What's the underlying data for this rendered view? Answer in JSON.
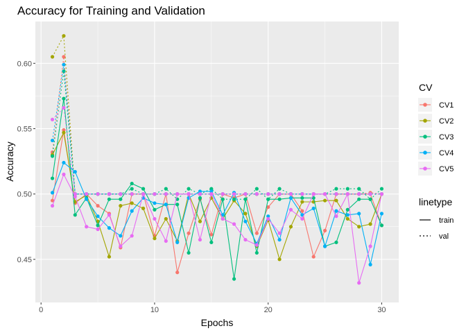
{
  "chart_data": {
    "type": "line",
    "title": "Accuracy for Training and Validation",
    "xlabel": "Epochs",
    "ylabel": "Accuracy",
    "xlim": [
      -0.5,
      31.5
    ],
    "ylim": [
      0.417,
      0.632
    ],
    "x_ticks": [
      0,
      10,
      20,
      30
    ],
    "y_ticks": [
      0.45,
      0.5,
      0.55,
      0.6
    ],
    "x_tick_labels": [
      "0",
      "10",
      "20",
      "30"
    ],
    "y_tick_labels": [
      "0.45",
      "0.50",
      "0.55",
      "0.60"
    ],
    "grid": true,
    "legend_position": "right",
    "x": [
      1,
      2,
      3,
      4,
      5,
      6,
      7,
      8,
      9,
      10,
      11,
      12,
      13,
      14,
      15,
      16,
      17,
      18,
      19,
      20,
      21,
      22,
      23,
      24,
      25,
      26,
      27,
      28,
      29,
      30
    ],
    "cv_legend_title": "CV",
    "linetype_legend_title": "linetype",
    "linetypes": [
      {
        "name": "train",
        "dash": ""
      },
      {
        "name": "val",
        "dash": "2,3"
      }
    ],
    "series": [
      {
        "name": "CV1",
        "color": "#F8766D",
        "train": [
          0.495,
          0.549,
          0.493,
          0.5,
          0.491,
          0.485,
          0.459,
          0.5,
          0.5,
          0.468,
          0.5,
          0.44,
          0.47,
          0.496,
          0.469,
          0.5,
          0.497,
          0.5,
          0.47,
          0.49,
          0.5,
          0.5,
          0.487,
          0.452,
          0.472,
          0.5,
          0.5,
          0.5,
          0.5,
          0.476
        ],
        "val": [
          0.532,
          0.605,
          0.5,
          0.5,
          0.5,
          0.5,
          0.5,
          0.5,
          0.5,
          0.5,
          0.5,
          0.5,
          0.5,
          0.5,
          0.5,
          0.5,
          0.5,
          0.5,
          0.5,
          0.5,
          0.5,
          0.5,
          0.5,
          0.5,
          0.5,
          0.5,
          0.5,
          0.5,
          0.501,
          0.5
        ]
      },
      {
        "name": "CV2",
        "color": "#A3A500",
        "train": [
          0.53,
          0.547,
          0.494,
          0.499,
          0.479,
          0.452,
          0.491,
          0.493,
          0.489,
          0.466,
          0.481,
          0.464,
          0.5,
          0.479,
          0.497,
          0.481,
          0.495,
          0.485,
          0.46,
          0.48,
          0.45,
          0.475,
          0.494,
          0.494,
          0.495,
          0.495,
          0.481,
          0.475,
          0.477,
          0.5
        ],
        "val": [
          0.605,
          0.621,
          0.5,
          0.5,
          0.5,
          0.5,
          0.5,
          0.5,
          0.5,
          0.5,
          0.5,
          0.5,
          0.5,
          0.5,
          0.5,
          0.5,
          0.5,
          0.5,
          0.5,
          0.5,
          0.5,
          0.5,
          0.5,
          0.5,
          0.5,
          0.5,
          0.5,
          0.5,
          0.5,
          0.5
        ]
      },
      {
        "name": "CV3",
        "color": "#00BF7D",
        "train": [
          0.512,
          0.573,
          0.484,
          0.497,
          0.476,
          0.496,
          0.496,
          0.508,
          0.504,
          0.488,
          0.492,
          0.492,
          0.455,
          0.497,
          0.463,
          0.496,
          0.435,
          0.496,
          0.455,
          0.496,
          0.496,
          0.497,
          0.497,
          0.497,
          0.46,
          0.463,
          0.488,
          0.496,
          0.496,
          0.476
        ],
        "val": [
          0.529,
          0.594,
          0.5,
          0.5,
          0.5,
          0.5,
          0.5,
          0.504,
          0.5,
          0.5,
          0.504,
          0.496,
          0.504,
          0.5,
          0.504,
          0.496,
          0.496,
          0.496,
          0.504,
          0.496,
          0.504,
          0.5,
          0.5,
          0.5,
          0.5,
          0.504,
          0.504,
          0.504,
          0.496,
          0.504
        ]
      },
      {
        "name": "CV4",
        "color": "#00B0F6",
        "train": [
          0.501,
          0.524,
          0.517,
          0.496,
          0.483,
          0.474,
          0.468,
          0.487,
          0.497,
          0.493,
          0.492,
          0.463,
          0.497,
          0.502,
          0.502,
          0.484,
          0.501,
          0.479,
          0.462,
          0.483,
          0.465,
          0.497,
          0.484,
          0.489,
          0.46,
          0.487,
          0.484,
          0.485,
          0.446,
          0.485
        ],
        "val": [
          0.541,
          0.599,
          0.5,
          0.5,
          0.5,
          0.5,
          0.5,
          0.5,
          0.5,
          0.5,
          0.5,
          0.5,
          0.5,
          0.5,
          0.5,
          0.5,
          0.5,
          0.5,
          0.5,
          0.5,
          0.5,
          0.5,
          0.5,
          0.5,
          0.5,
          0.5,
          0.5,
          0.5,
          0.5,
          0.5
        ]
      },
      {
        "name": "CV5",
        "color": "#E76BF3",
        "train": [
          0.491,
          0.515,
          0.498,
          0.475,
          0.473,
          0.484,
          0.46,
          0.468,
          0.5,
          0.481,
          0.464,
          0.5,
          0.5,
          0.465,
          0.5,
          0.481,
          0.477,
          0.465,
          0.461,
          0.481,
          0.47,
          0.488,
          0.481,
          0.5,
          0.5,
          0.483,
          0.5,
          0.432,
          0.46,
          0.5
        ],
        "val": [
          0.557,
          0.566,
          0.5,
          0.5,
          0.5,
          0.5,
          0.5,
          0.5,
          0.5,
          0.5,
          0.5,
          0.5,
          0.5,
          0.5,
          0.5,
          0.5,
          0.5,
          0.5,
          0.5,
          0.5,
          0.5,
          0.5,
          0.5,
          0.5,
          0.5,
          0.5,
          0.5,
          0.5,
          0.5,
          0.5
        ]
      }
    ]
  }
}
